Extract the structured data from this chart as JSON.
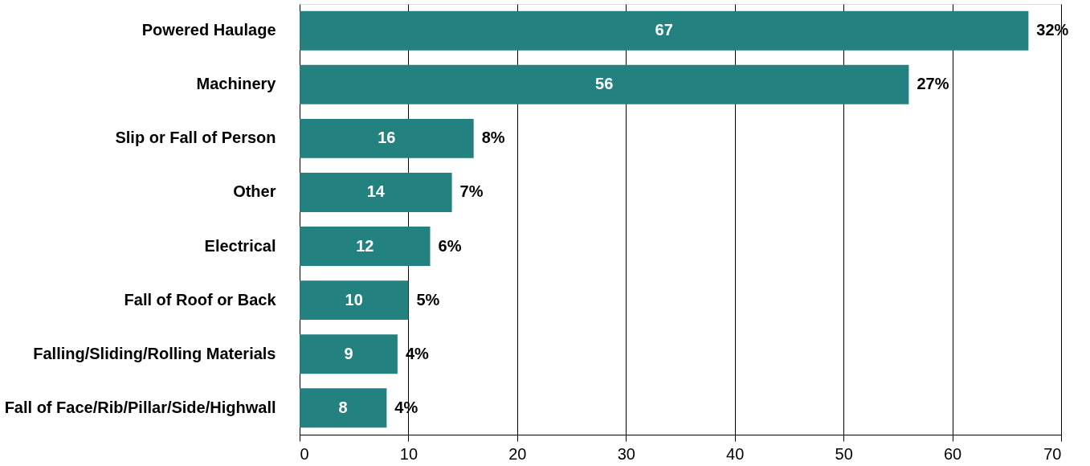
{
  "chart_data": {
    "type": "bar",
    "orientation": "horizontal",
    "categories": [
      "Powered Haulage",
      "Machinery",
      "Slip or Fall of Person",
      "Other",
      "Electrical",
      "Fall of Roof or Back",
      "Falling/Sliding/Rolling Materials",
      "Fall of Face/Rib/Pillar/Side/Highwall"
    ],
    "values": [
      67,
      56,
      16,
      14,
      12,
      10,
      9,
      8
    ],
    "annotations": [
      {
        "text": "32%",
        "x": 67,
        "y": "Powered Haulage"
      },
      {
        "text": "27%",
        "x": 56,
        "y": "Machinery"
      },
      {
        "text": "8%",
        "x": 16,
        "y": "Slip or Fall of Person"
      },
      {
        "text": "7%",
        "x": 14,
        "y": "Other"
      },
      {
        "text": "6%",
        "x": 12,
        "y": "Electrical"
      },
      {
        "text": "5%",
        "x": 10,
        "y": "Fall of Roof or Back"
      },
      {
        "text": "4%",
        "x": 9,
        "y": "Falling/Sliding/Rolling Materials"
      },
      {
        "text": "4%",
        "x": 8,
        "y": "Fall of Face/Rib/Pillar/Side/Highwall"
      }
    ],
    "color": "#23827f",
    "data_labels": true,
    "xlim": [
      0,
      70
    ],
    "xticks": [
      0,
      10,
      20,
      30,
      40,
      50,
      60,
      70
    ],
    "grid": "x"
  }
}
